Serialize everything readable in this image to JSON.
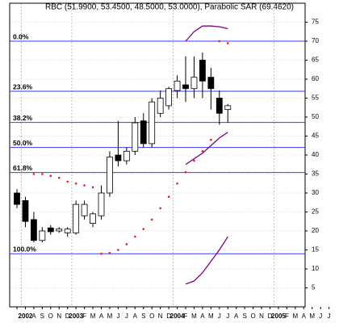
{
  "chart_data": {
    "type": "candlestick",
    "title": "RBC (51.9900, 53.4500, 48.5000, 53.0000), Parabolic SAR (69.4620)",
    "categories": [
      null,
      "2002",
      "A",
      "S",
      "O",
      "N",
      "D",
      "2003",
      "F",
      "M",
      "A",
      "M",
      "J",
      "J",
      "A",
      "S",
      "O",
      "N",
      "D",
      "2004",
      "F",
      "M",
      "A",
      "M",
      "J",
      "J",
      "A",
      "S",
      "O",
      "N",
      "D",
      "2005",
      "F",
      "M",
      "A",
      "M",
      "J",
      "J"
    ],
    "open": [
      30,
      28,
      23,
      17.5,
      20.8,
      20,
      19.5,
      19.5,
      24,
      22,
      24,
      30,
      40,
      38.5,
      41,
      49,
      43,
      51,
      53,
      57,
      58.5,
      57.5,
      65,
      60.5,
      55,
      51.99,
      null,
      null,
      null,
      null,
      null,
      null,
      null,
      null,
      null,
      null,
      null,
      null
    ],
    "high": [
      31,
      29,
      25,
      21,
      21.5,
      21,
      21,
      28,
      28,
      25,
      32,
      41,
      49,
      42,
      50,
      51,
      55,
      57,
      58,
      61,
      66,
      66,
      67,
      63,
      57,
      53.45,
      null,
      null,
      null,
      null,
      null,
      null,
      null,
      null,
      null,
      null,
      null,
      null
    ],
    "low": [
      26,
      21,
      17,
      17,
      19,
      19.5,
      18.5,
      19,
      23,
      21,
      23,
      29,
      37,
      37.5,
      40,
      42,
      42,
      50,
      52,
      55,
      54,
      55,
      55,
      52,
      48,
      48.5,
      null,
      null,
      null,
      null,
      null,
      null,
      null,
      null,
      null,
      null,
      null,
      null
    ],
    "close": [
      27,
      22.5,
      17.5,
      20,
      19.8,
      20.5,
      20.5,
      27,
      27,
      24.5,
      30,
      39.5,
      38.5,
      41,
      48.5,
      43,
      54,
      55,
      57.5,
      59.5,
      57.5,
      60.5,
      59.5,
      57.5,
      51,
      53,
      null,
      null,
      null,
      null,
      null,
      null,
      null,
      null,
      null,
      null,
      null,
      null
    ],
    "up_color": "#ffffff",
    "down_color": "#000000",
    "sar": {
      "color": "#e02020",
      "values": [
        null,
        null,
        35,
        35,
        34.5,
        34,
        33,
        32.5,
        32,
        31.5,
        14,
        14.2,
        15,
        16.5,
        18.5,
        20.5,
        23,
        26,
        29,
        32.5,
        35.5,
        38.5,
        41,
        44,
        70,
        69.462,
        null,
        null,
        null,
        null,
        null,
        null,
        null,
        null,
        null,
        null,
        null,
        null
      ]
    },
    "curves": [
      {
        "color": "#800080",
        "values": [
          null,
          null,
          null,
          null,
          null,
          null,
          null,
          null,
          null,
          null,
          null,
          null,
          null,
          null,
          null,
          null,
          null,
          null,
          null,
          null,
          70,
          72.5,
          74,
          74,
          73.8,
          73.3,
          null,
          null,
          null,
          null,
          null,
          null,
          null,
          null,
          null,
          null,
          null,
          null
        ]
      },
      {
        "color": "#800080",
        "values": [
          null,
          null,
          null,
          null,
          null,
          null,
          null,
          null,
          null,
          null,
          null,
          null,
          null,
          null,
          null,
          null,
          null,
          null,
          null,
          null,
          37.5,
          39,
          40.5,
          42.5,
          44.5,
          46,
          null,
          null,
          null,
          null,
          null,
          null,
          null,
          null,
          null,
          null,
          null,
          null
        ]
      },
      {
        "color": "#800080",
        "values": [
          null,
          null,
          null,
          null,
          null,
          null,
          null,
          null,
          null,
          null,
          null,
          null,
          null,
          null,
          null,
          null,
          null,
          null,
          null,
          null,
          6,
          6.8,
          9,
          12,
          15,
          18.5,
          null,
          null,
          null,
          null,
          null,
          null,
          null,
          null,
          null,
          null,
          null,
          null
        ]
      }
    ],
    "levels": [
      {
        "label": "0.0%",
        "value": 70
      },
      {
        "label": "23.6%",
        "value": 56.8
      },
      {
        "label": "38.2%",
        "value": 48.6
      },
      {
        "label": "50.0%",
        "value": 42
      },
      {
        "label": "61.8%",
        "value": 35.4
      },
      {
        "label": "100.0%",
        "value": 14
      }
    ],
    "level_color": "#3a3aff",
    "ylim": [
      0,
      80
    ],
    "yticks": [
      5,
      10,
      15,
      20,
      25,
      30,
      35,
      40,
      45,
      50,
      55,
      60,
      65,
      70,
      75
    ],
    "grid": true
  }
}
